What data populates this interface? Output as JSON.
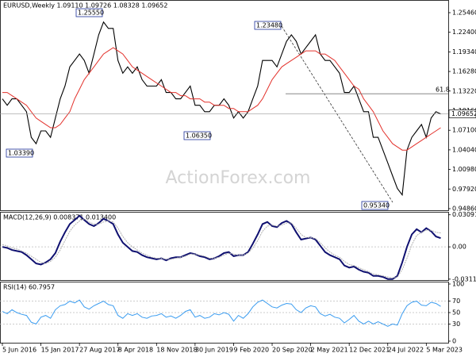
{
  "chart_data": [
    {
      "type": "line",
      "title": "EURUSD,Weekly  1.09110 1.09726 1.08328 1.09652",
      "watermark": "ActionForex.com",
      "categories": [
        "5 Jun 2016",
        null,
        null,
        null,
        null,
        null,
        null,
        null,
        "15 Jan 2017",
        null,
        null,
        null,
        null,
        null,
        null,
        null,
        "27 Aug 2017",
        null,
        null,
        null,
        null,
        null,
        null,
        null,
        "8 Apr 2018",
        null,
        null,
        null,
        null,
        null,
        null,
        null,
        "18 Nov 2018",
        null,
        null,
        null,
        null,
        null,
        null,
        null,
        "30 Jun 2019",
        null,
        null,
        null,
        null,
        null,
        null,
        null,
        "9 Feb 2020",
        null,
        null,
        null,
        null,
        null,
        null,
        null,
        "20 Sep 2020",
        null,
        null,
        null,
        null,
        null,
        null,
        null,
        "2 May 2021",
        null,
        null,
        null,
        null,
        null,
        null,
        null,
        "12 Dec 2021",
        null,
        null,
        null,
        null,
        null,
        null,
        null,
        "24 Jul 2022",
        null,
        null,
        null,
        null,
        null,
        null,
        null,
        "5 Mar 2023",
        null,
        null,
        null
      ],
      "series": [
        {
          "color": "#000000",
          "values": [
            1.12,
            1.11,
            1.12,
            1.12,
            1.11,
            1.1,
            1.06,
            1.05,
            1.07,
            1.07,
            1.06,
            1.09,
            1.12,
            1.14,
            1.17,
            1.18,
            1.19,
            1.18,
            1.16,
            1.19,
            1.22,
            1.24,
            1.23,
            1.23,
            1.18,
            1.16,
            1.17,
            1.16,
            1.17,
            1.15,
            1.14,
            1.14,
            1.14,
            1.15,
            1.13,
            1.13,
            1.12,
            1.12,
            1.13,
            1.14,
            1.11,
            1.11,
            1.1,
            1.1,
            1.11,
            1.11,
            1.12,
            1.11,
            1.09,
            1.1,
            1.09,
            1.1,
            1.12,
            1.14,
            1.18,
            1.18,
            1.18,
            1.17,
            1.19,
            1.21,
            1.22,
            1.21,
            1.19,
            1.2,
            1.21,
            1.22,
            1.19,
            1.18,
            1.18,
            1.17,
            1.16,
            1.13,
            1.13,
            1.14,
            1.12,
            1.1,
            1.1,
            1.06,
            1.06,
            1.04,
            1.02,
            1.0,
            0.98,
            0.97,
            1.04,
            1.06,
            1.07,
            1.08,
            1.06,
            1.09,
            1.1,
            1.09652
          ]
        },
        {
          "color": "#e3322c",
          "values": [
            1.13,
            1.13,
            1.125,
            1.12,
            1.115,
            1.11,
            1.1,
            1.09,
            1.085,
            1.08,
            1.075,
            1.075,
            1.08,
            1.09,
            1.1,
            1.12,
            1.135,
            1.15,
            1.16,
            1.17,
            1.18,
            1.19,
            1.195,
            1.2,
            1.195,
            1.19,
            1.18,
            1.17,
            1.165,
            1.16,
            1.155,
            1.15,
            1.145,
            1.14,
            1.135,
            1.13,
            1.13,
            1.125,
            1.125,
            1.12,
            1.12,
            1.12,
            1.115,
            1.115,
            1.11,
            1.11,
            1.11,
            1.105,
            1.105,
            1.1,
            1.1,
            1.1,
            1.105,
            1.11,
            1.12,
            1.135,
            1.15,
            1.16,
            1.17,
            1.175,
            1.18,
            1.185,
            1.19,
            1.195,
            1.195,
            1.195,
            1.19,
            1.19,
            1.185,
            1.18,
            1.17,
            1.16,
            1.15,
            1.14,
            1.135,
            1.12,
            1.11,
            1.1,
            1.085,
            1.07,
            1.06,
            1.05,
            1.045,
            1.04,
            1.04,
            1.045,
            1.05,
            1.055,
            1.06,
            1.065,
            1.07,
            1.075
          ]
        }
      ],
      "last_value_label": "1.09652",
      "annotations": [
        "1.25550",
        "1.23480",
        "1.06350",
        "1.03390",
        "0.95340"
      ],
      "fib_label": "61.8",
      "fib_level": 1.128,
      "ylim": [
        0.9461,
        1.2744
      ],
      "yticks": [
        {
          "value": 1.2546,
          "label": "1.25460"
        },
        {
          "value": 1.224,
          "label": "1.22400"
        },
        {
          "value": 1.1934,
          "label": "1.19340"
        },
        {
          "value": 1.1628,
          "label": "1.16280"
        },
        {
          "value": 1.1322,
          "label": "1.13220"
        },
        {
          "value": 1.1016,
          "label": "1.10160"
        },
        {
          "value": 1.071,
          "label": "1.07100"
        },
        {
          "value": 1.0404,
          "label": "1.04040"
        },
        {
          "value": 1.0098,
          "label": "1.00980"
        },
        {
          "value": 0.9792,
          "label": "0.97920"
        },
        {
          "value": 0.9486,
          "label": "0.94860"
        }
      ]
    },
    {
      "type": "line",
      "title": "MACD(12,26,9) 0.008371 0.013400",
      "series": [
        {
          "color": "#0f1070",
          "values": [
            0.0,
            -0.001,
            -0.003,
            -0.004,
            -0.005,
            -0.008,
            -0.012,
            -0.016,
            -0.017,
            -0.015,
            -0.012,
            -0.006,
            0.005,
            0.014,
            0.022,
            0.026,
            0.03,
            0.026,
            0.022,
            0.02,
            0.023,
            0.027,
            0.025,
            0.022,
            0.012,
            0.004,
            0.0,
            -0.004,
            -0.005,
            -0.008,
            -0.01,
            -0.011,
            -0.012,
            -0.011,
            -0.013,
            -0.011,
            -0.01,
            -0.01,
            -0.008,
            -0.006,
            -0.007,
            -0.009,
            -0.01,
            -0.012,
            -0.011,
            -0.009,
            -0.006,
            -0.005,
            -0.009,
            -0.008,
            -0.008,
            -0.005,
            0.003,
            0.012,
            0.022,
            0.024,
            0.02,
            0.019,
            0.023,
            0.025,
            0.022,
            0.014,
            0.007,
            0.008,
            0.009,
            0.007,
            0.001,
            -0.005,
            -0.008,
            -0.01,
            -0.012,
            -0.018,
            -0.02,
            -0.019,
            -0.022,
            -0.024,
            -0.025,
            -0.028,
            -0.028,
            -0.029,
            -0.031,
            -0.031,
            -0.028,
            -0.015,
            0.0,
            0.012,
            0.017,
            0.014,
            0.018,
            0.015,
            0.01,
            0.008371
          ]
        },
        {
          "color": "#b0b0b0",
          "values": [
            0.002,
            0.001,
            -0.001,
            -0.002,
            -0.004,
            -0.006,
            -0.009,
            -0.012,
            -0.015,
            -0.016,
            -0.014,
            -0.01,
            -0.003,
            0.006,
            0.015,
            0.021,
            0.025,
            0.027,
            0.024,
            0.022,
            0.022,
            0.024,
            0.025,
            0.024,
            0.018,
            0.01,
            0.004,
            0.0,
            -0.003,
            -0.006,
            -0.008,
            -0.01,
            -0.011,
            -0.011,
            -0.012,
            -0.012,
            -0.011,
            -0.01,
            -0.009,
            -0.007,
            -0.007,
            -0.008,
            -0.009,
            -0.011,
            -0.011,
            -0.01,
            -0.008,
            -0.006,
            -0.007,
            -0.008,
            -0.008,
            -0.006,
            -0.001,
            0.006,
            0.015,
            0.02,
            0.021,
            0.02,
            0.021,
            0.023,
            0.023,
            0.018,
            0.012,
            0.009,
            0.009,
            0.008,
            0.004,
            -0.001,
            -0.005,
            -0.008,
            -0.01,
            -0.014,
            -0.017,
            -0.018,
            -0.02,
            -0.022,
            -0.024,
            -0.026,
            -0.027,
            -0.028,
            -0.029,
            -0.03,
            -0.029,
            -0.022,
            -0.011,
            0.002,
            0.011,
            0.014,
            0.016,
            0.016,
            0.014,
            0.0134
          ]
        }
      ],
      "ylim": [
        -0.032,
        0.033
      ],
      "yticks": [
        0.030914,
        {
          "value": 0,
          "label": "0.00"
        },
        -0.031124
      ]
    },
    {
      "type": "line",
      "title": "RSI(14) 60.7957",
      "series": [
        {
          "color": "#3a9cf0",
          "values": [
            52,
            48,
            55,
            50,
            47,
            45,
            33,
            30,
            42,
            45,
            40,
            55,
            62,
            64,
            70,
            67,
            72,
            60,
            56,
            62,
            66,
            70,
            64,
            62,
            45,
            40,
            48,
            45,
            48,
            42,
            40,
            44,
            45,
            48,
            42,
            44,
            40,
            45,
            52,
            55,
            42,
            45,
            40,
            42,
            48,
            46,
            50,
            47,
            35,
            45,
            40,
            48,
            60,
            68,
            72,
            66,
            60,
            58,
            63,
            66,
            65,
            55,
            50,
            58,
            62,
            60,
            48,
            44,
            47,
            42,
            40,
            32,
            38,
            45,
            35,
            30,
            35,
            30,
            34,
            30,
            26,
            30,
            28,
            48,
            62,
            68,
            70,
            63,
            62,
            68,
            66,
            60.7957
          ]
        }
      ],
      "ylim": [
        0,
        100
      ],
      "yticks": [
        100,
        70,
        50,
        30,
        0
      ]
    }
  ]
}
